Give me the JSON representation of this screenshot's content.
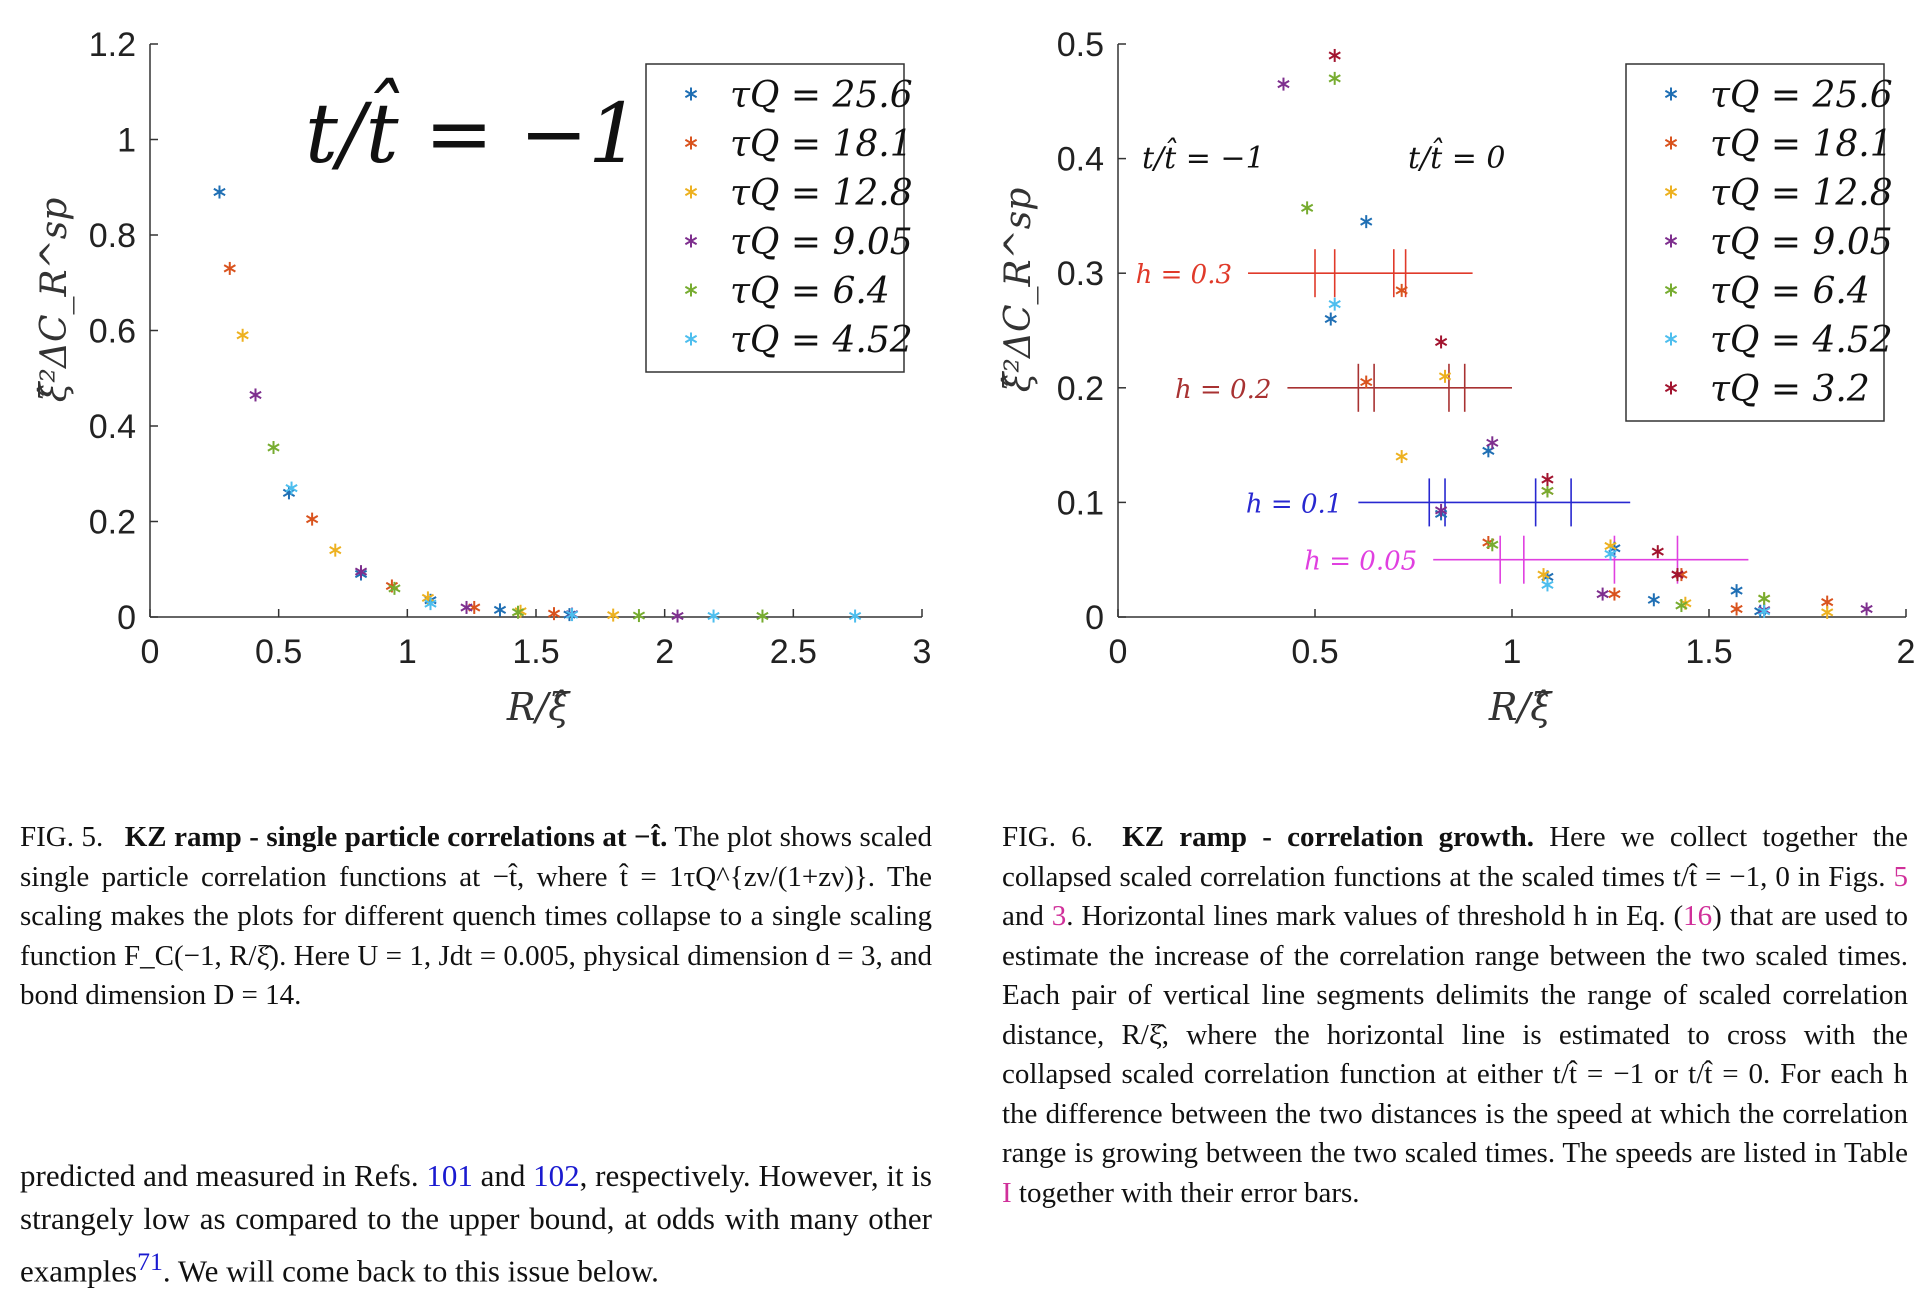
{
  "figure5": {
    "annotation": "t/t̂ = −1",
    "ylabel": "ξ̂²ΔC_R^sp",
    "xlabel": "R/ξ̂",
    "legend": [
      "τQ = 25.6",
      "τQ = 18.1",
      "τQ = 12.8",
      "τQ = 9.05",
      "τQ = 6.4",
      "τQ = 4.52"
    ],
    "chart_data": {
      "type": "scatter",
      "xlabel": "R/ξ̂",
      "ylabel": "ξ̂²ΔC_R^sp",
      "xlim": [
        0,
        3
      ],
      "ylim": [
        0,
        1.2
      ],
      "xticks": [
        "0",
        "0.5",
        "1",
        "1.5",
        "2",
        "2.5",
        "3"
      ],
      "yticks": [
        "0",
        "0.2",
        "0.4",
        "0.6",
        "0.8",
        "1",
        "1.2"
      ],
      "series": [
        {
          "name": "τQ = 25.6",
          "color": "#1f6fb4",
          "points": [
            [
              0.27,
              0.89
            ],
            [
              0.54,
              0.26
            ],
            [
              0.82,
              0.09
            ],
            [
              1.09,
              0.035
            ],
            [
              1.36,
              0.015
            ],
            [
              1.63,
              0.005
            ]
          ]
        },
        {
          "name": "τQ = 18.1",
          "color": "#d9531e",
          "points": [
            [
              0.31,
              0.73
            ],
            [
              0.63,
              0.205
            ],
            [
              0.94,
              0.065
            ],
            [
              1.26,
              0.02
            ],
            [
              1.57,
              0.007
            ]
          ]
        },
        {
          "name": "τQ = 12.8",
          "color": "#edb120",
          "points": [
            [
              0.36,
              0.59
            ],
            [
              0.72,
              0.14
            ],
            [
              1.08,
              0.04
            ],
            [
              1.44,
              0.012
            ],
            [
              1.8,
              0.004
            ]
          ]
        },
        {
          "name": "τQ = 9.05",
          "color": "#7e2f8e",
          "points": [
            [
              0.41,
              0.465
            ],
            [
              0.82,
              0.095
            ],
            [
              1.23,
              0.02
            ],
            [
              1.64,
              0.006
            ],
            [
              2.05,
              0.002
            ]
          ]
        },
        {
          "name": "τQ = 6.4",
          "color": "#77ac30",
          "points": [
            [
              0.48,
              0.355
            ],
            [
              0.95,
              0.06
            ],
            [
              1.43,
              0.01
            ],
            [
              1.9,
              0.003
            ],
            [
              2.38,
              0.002
            ]
          ]
        },
        {
          "name": "τQ = 4.52",
          "color": "#4dbeee",
          "points": [
            [
              0.55,
              0.27
            ],
            [
              1.09,
              0.028
            ],
            [
              1.64,
              0.005
            ],
            [
              2.19,
              0.002
            ],
            [
              2.74,
              0.002
            ]
          ]
        }
      ]
    }
  },
  "figure6": {
    "annotation_left": "t/t̂ = −1",
    "annotation_right": "t/t̂ = 0",
    "ylabel": "ξ̂²ΔC_R^sp",
    "xlabel": "R/ξ̂",
    "legend": [
      "τQ = 25.6",
      "τQ = 18.1",
      "τQ = 12.8",
      "τQ = 9.05",
      "τQ = 6.4",
      "τQ = 4.52",
      "τQ = 3.2"
    ],
    "chart_data": {
      "type": "scatter",
      "xlabel": "R/ξ̂",
      "ylabel": "ξ̂²ΔC_R^sp",
      "xlim": [
        0,
        2
      ],
      "ylim": [
        0,
        0.5
      ],
      "xticks": [
        "0",
        "0.5",
        "1",
        "1.5",
        "2"
      ],
      "yticks": [
        "0",
        "0.1",
        "0.2",
        "0.3",
        "0.4",
        "0.5"
      ],
      "series": [
        {
          "name": "τQ = 25.6",
          "color": "#1f6fb4",
          "points": [
            [
              0.54,
              0.26
            ],
            [
              0.63,
              0.345
            ],
            [
              0.82,
              0.09
            ],
            [
              0.94,
              0.145
            ],
            [
              1.09,
              0.035
            ],
            [
              1.26,
              0.06
            ],
            [
              1.36,
              0.015
            ],
            [
              1.57,
              0.023
            ],
            [
              1.63,
              0.005
            ]
          ]
        },
        {
          "name": "τQ = 18.1",
          "color": "#d9531e",
          "points": [
            [
              0.63,
              0.205
            ],
            [
              0.72,
              0.285
            ],
            [
              0.94,
              0.065
            ],
            [
              1.09,
              0.11
            ],
            [
              1.26,
              0.02
            ],
            [
              1.43,
              0.037
            ],
            [
              1.57,
              0.007
            ],
            [
              1.8,
              0.013
            ]
          ]
        },
        {
          "name": "τQ = 12.8",
          "color": "#edb120",
          "points": [
            [
              0.72,
              0.14
            ],
            [
              0.83,
              0.21
            ],
            [
              1.08,
              0.037
            ],
            [
              1.25,
              0.062
            ],
            [
              1.44,
              0.012
            ],
            [
              1.64,
              0.016
            ],
            [
              1.8,
              0.004
            ]
          ]
        },
        {
          "name": "τQ = 9.05",
          "color": "#7e2f8e",
          "points": [
            [
              0.42,
              0.465
            ],
            [
              0.82,
              0.093
            ],
            [
              0.95,
              0.152
            ],
            [
              1.23,
              0.02
            ],
            [
              1.42,
              0.037
            ],
            [
              1.64,
              0.006
            ],
            [
              1.9,
              0.007
            ]
          ]
        },
        {
          "name": "τQ = 6.4",
          "color": "#77ac30",
          "points": [
            [
              0.48,
              0.357
            ],
            [
              0.55,
              0.47
            ],
            [
              0.95,
              0.063
            ],
            [
              1.09,
              0.11
            ],
            [
              1.43,
              0.01
            ],
            [
              1.64,
              0.016
            ]
          ]
        },
        {
          "name": "τQ = 4.52",
          "color": "#4dbeee",
          "points": [
            [
              0.55,
              0.273
            ],
            [
              1.09,
              0.028
            ],
            [
              1.25,
              0.055
            ],
            [
              1.64,
              0.005
            ]
          ]
        },
        {
          "name": "τQ = 3.2",
          "color": "#a2142f",
          "points": [
            [
              0.55,
              0.49
            ],
            [
              0.82,
              0.24
            ],
            [
              1.09,
              0.12
            ],
            [
              1.37,
              0.057
            ],
            [
              1.42,
              0.037
            ]
          ]
        }
      ],
      "threshold_lines": [
        {
          "label": "h = 0.3",
          "y": 0.3,
          "x": [
            0.33,
            0.9
          ],
          "color": "#e03a2a",
          "ticks": [
            0.5,
            0.55,
            0.7,
            0.73
          ]
        },
        {
          "label": "h = 0.2",
          "y": 0.2,
          "x": [
            0.43,
            1.0
          ],
          "color": "#a83232",
          "ticks": [
            0.61,
            0.65,
            0.84,
            0.88
          ]
        },
        {
          "label": "h = 0.1",
          "y": 0.1,
          "x": [
            0.61,
            1.3
          ],
          "color": "#2828d0",
          "ticks": [
            0.79,
            0.83,
            1.06,
            1.15
          ]
        },
        {
          "label": "h = 0.05",
          "y": 0.05,
          "x": [
            0.8,
            1.6
          ],
          "color": "#e040e0",
          "ticks": [
            0.97,
            1.03,
            1.26,
            1.42
          ]
        }
      ]
    }
  },
  "caption5": {
    "label": "FIG. 5.",
    "title": "KZ ramp - single particle correlations at −t̂.",
    "text": "The plot shows scaled single particle correlation functions at −t̂, where t̂ = 1τQ^{zν/(1+zν)}. The scaling makes the plots for different quench times collapse to a single scaling function F_C(−1, R/ξ̂). Here U = 1, Jdt = 0.005, physical dimension d = 3, and bond dimension D = 14."
  },
  "caption6": {
    "label": "FIG. 6.",
    "title": "KZ ramp - correlation growth.",
    "t1": "Here we collect together the collapsed scaled correlation functions at the scaled times t/t̂ = −1, 0 in Figs. ",
    "ref5": "5",
    "t2": " and ",
    "ref3": "3",
    "t3": ". Horizontal lines mark values of threshold h in Eq. (",
    "ref16": "16",
    "t4": ") that are used to estimate the increase of the correlation range between the two scaled times. Each pair of vertical line segments delimits the range of scaled correlation distance, R/ξ̂, where the horizontal line is estimated to cross with the collapsed scaled correlation function at either t/t̂ = −1 or t/t̂ = 0. For each h the difference between the two distances is the speed at which the correlation range is growing between the two scaled times. The speeds are listed in Table ",
    "refI": "I",
    "t5": " together with their error bars."
  },
  "body_text": {
    "t1": "predicted and measured in Refs. ",
    "ref101": "101",
    "t2": " and ",
    "ref102": "102",
    "t3": ", respectively. However, it is strangely low as compared to the upper bound, at odds with many other examples",
    "ref71": "71",
    "t4": ". We will come back to this issue below."
  }
}
